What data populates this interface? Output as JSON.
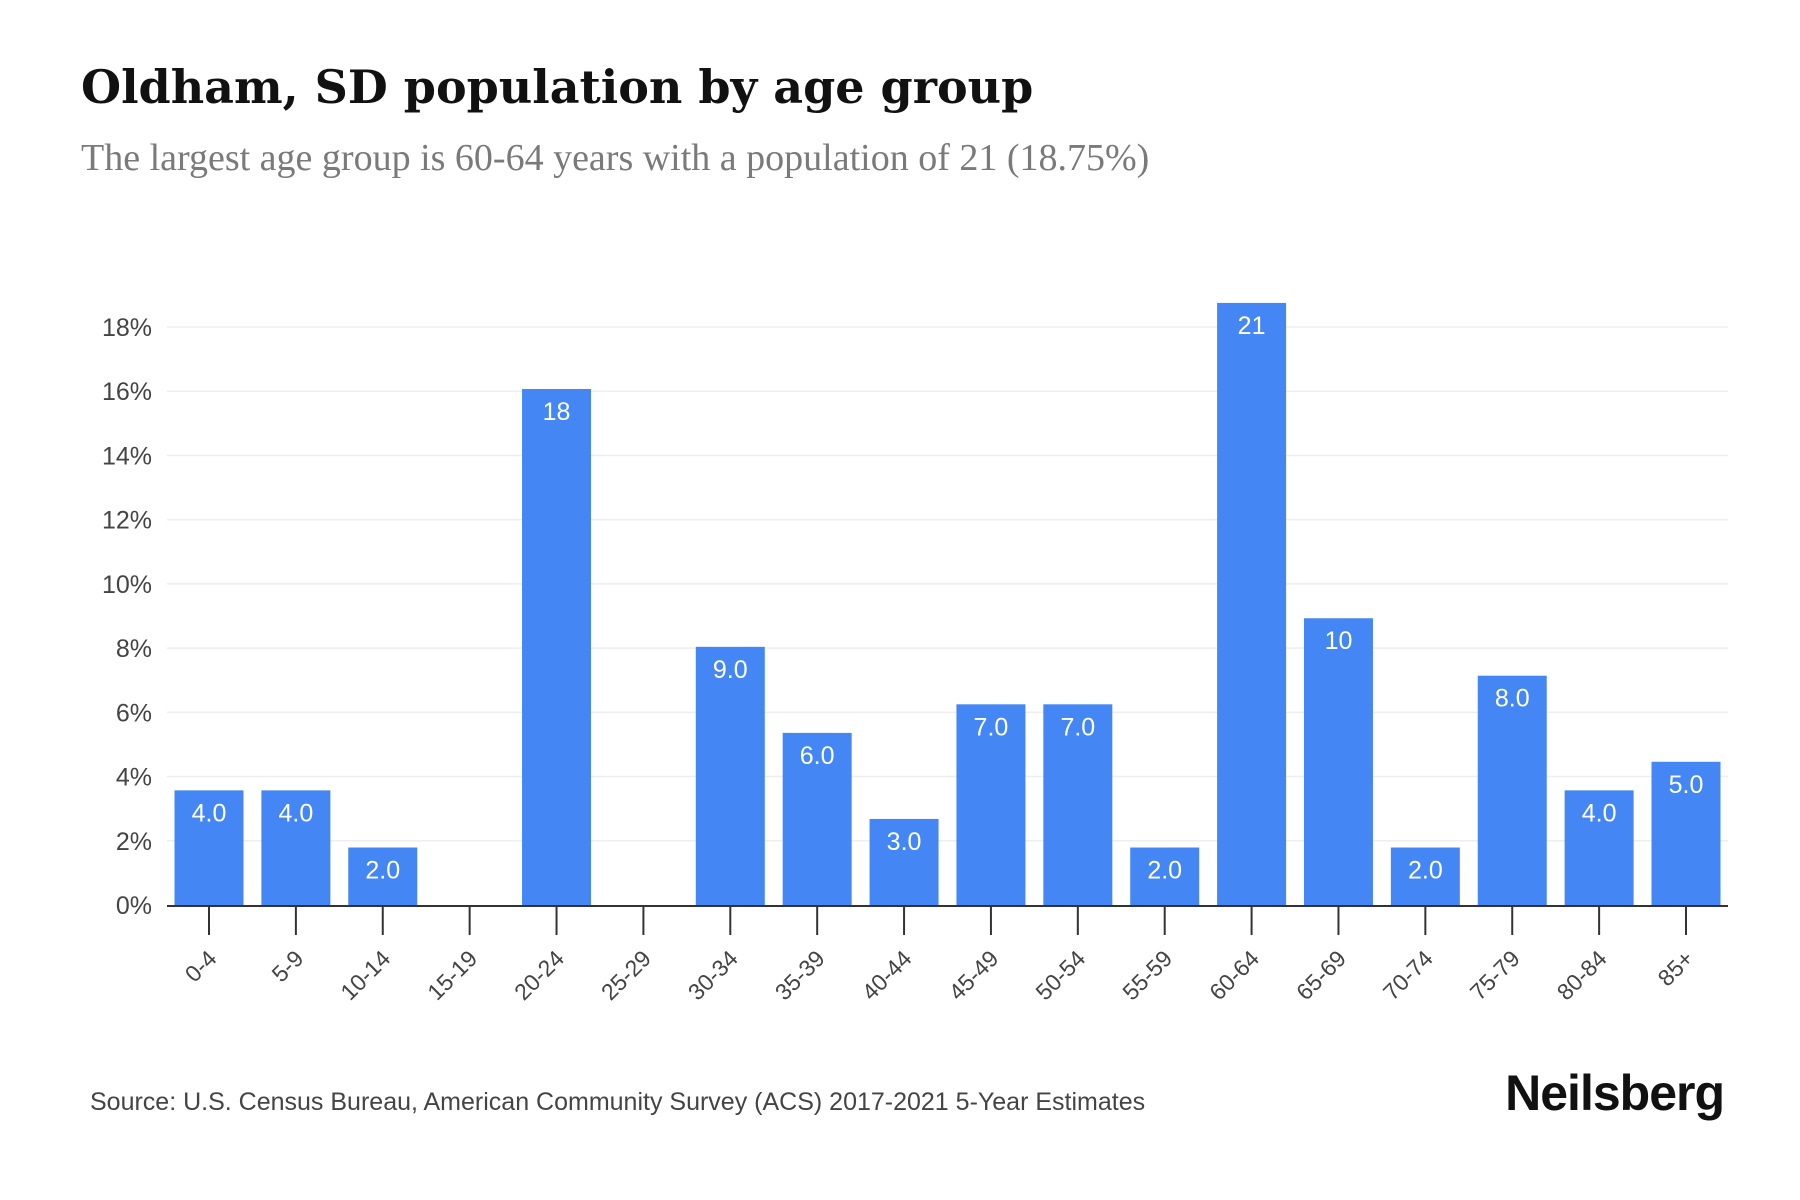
{
  "title": "Oldham, SD population by age group",
  "subtitle": "The largest age group is 60-64 years with a population of 21 (18.75%)",
  "source": "Source: U.S. Census Bureau, American Community Survey (ACS) 2017-2021 5-Year Estimates",
  "brand": "Neilsberg",
  "colors": {
    "bar": "#4487f4",
    "bar_label": "#ffffff",
    "grid": "#eeeeee",
    "axis": "#333333",
    "tick_text": "#444444"
  },
  "chart_data": {
    "type": "bar",
    "categories": [
      "0-4",
      "5-9",
      "10-14",
      "15-19",
      "20-24",
      "25-29",
      "30-34",
      "35-39",
      "40-44",
      "45-49",
      "50-54",
      "55-59",
      "60-64",
      "65-69",
      "70-74",
      "75-79",
      "80-84",
      "85+"
    ],
    "values": [
      3.57,
      3.57,
      1.79,
      0,
      16.07,
      0,
      8.04,
      5.36,
      2.68,
      6.25,
      6.25,
      1.79,
      18.75,
      8.93,
      1.79,
      7.14,
      3.57,
      4.46
    ],
    "data_labels": [
      "4.0",
      "4.0",
      "2.0",
      "",
      "18",
      "",
      "9.0",
      "6.0",
      "3.0",
      "7.0",
      "7.0",
      "2.0",
      "21",
      "10",
      "2.0",
      "8.0",
      "4.0",
      "5.0"
    ],
    "y_ticks": [
      "0%",
      "2%",
      "4%",
      "6%",
      "8%",
      "10%",
      "12%",
      "14%",
      "16%",
      "18%"
    ],
    "ylim": [
      0,
      18
    ],
    "grid": true
  }
}
